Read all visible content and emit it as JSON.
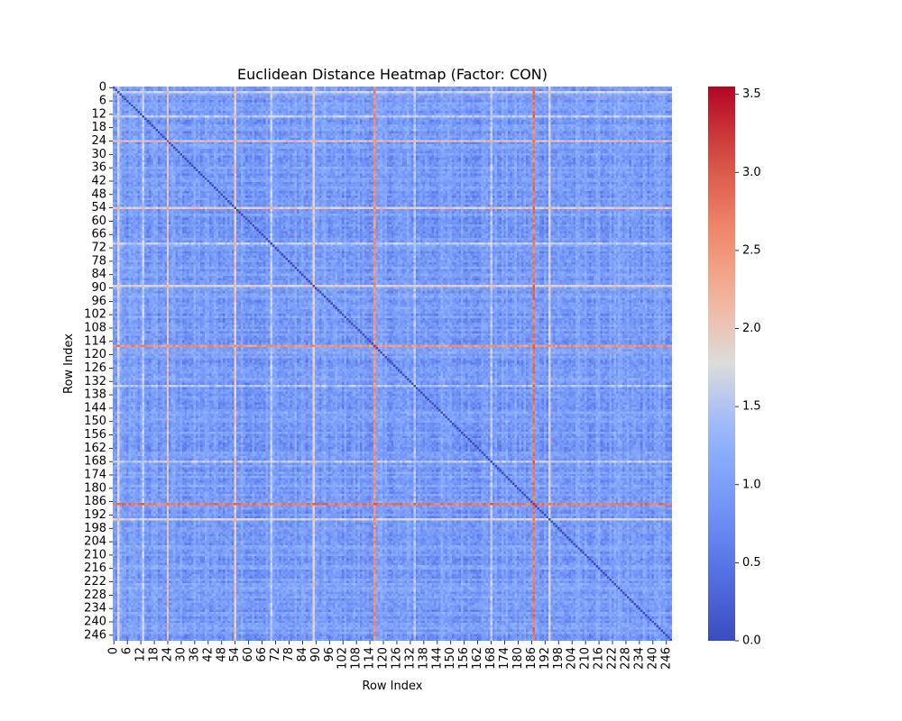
{
  "chart_data": {
    "type": "heatmap",
    "title": "Euclidean Distance Heatmap (Factor: CON)",
    "xlabel": "Row Index",
    "ylabel": "Row Index",
    "n": 249,
    "tick_step": 6,
    "colormap": "coolwarm",
    "vmin": 0.0,
    "vmax": 3.55,
    "colorbar_ticks": [
      "0.0",
      "0.5",
      "1.0",
      "1.5",
      "2.0",
      "2.5",
      "3.0",
      "3.5"
    ],
    "colorbar_tick_values": [
      0.0,
      0.5,
      1.0,
      1.5,
      2.0,
      2.5,
      3.0,
      3.5
    ],
    "x_tick_labels": [
      "0",
      "6",
      "12",
      "18",
      "24",
      "30",
      "36",
      "42",
      "48",
      "54",
      "60",
      "66",
      "72",
      "78",
      "84",
      "90",
      "96",
      "102",
      "108",
      "114",
      "120",
      "126",
      "132",
      "138",
      "144",
      "150",
      "156",
      "162",
      "168",
      "174",
      "180",
      "186",
      "192",
      "198",
      "204",
      "210",
      "216",
      "222",
      "228",
      "234",
      "240",
      "246"
    ],
    "y_tick_labels": [
      "0",
      "6",
      "12",
      "18",
      "24",
      "30",
      "36",
      "42",
      "48",
      "54",
      "60",
      "66",
      "72",
      "78",
      "84",
      "90",
      "96",
      "102",
      "108",
      "114",
      "120",
      "126",
      "132",
      "138",
      "144",
      "150",
      "156",
      "162",
      "168",
      "174",
      "180",
      "186",
      "192",
      "198",
      "204",
      "210",
      "216",
      "222",
      "228",
      "234",
      "240",
      "246"
    ],
    "diagonal_value": 0.0,
    "typical_range": [
      0.3,
      1.5
    ],
    "high_distance_rows": [
      {
        "index": 2,
        "level": 2.0
      },
      {
        "index": 24,
        "level": 2.4
      },
      {
        "index": 54,
        "level": 2.3
      },
      {
        "index": 89,
        "level": 2.2
      },
      {
        "index": 116,
        "level": 3.0
      },
      {
        "index": 187,
        "level": 3.3
      },
      {
        "index": 194,
        "level": 2.0
      },
      {
        "index": 13,
        "level": 1.8
      },
      {
        "index": 70,
        "level": 1.8
      },
      {
        "index": 168,
        "level": 1.8
      },
      {
        "index": 134,
        "level": 1.7
      }
    ],
    "colors": {
      "low": "#3b4cc0",
      "mid": "#dddddd",
      "high": "#b40426"
    }
  }
}
